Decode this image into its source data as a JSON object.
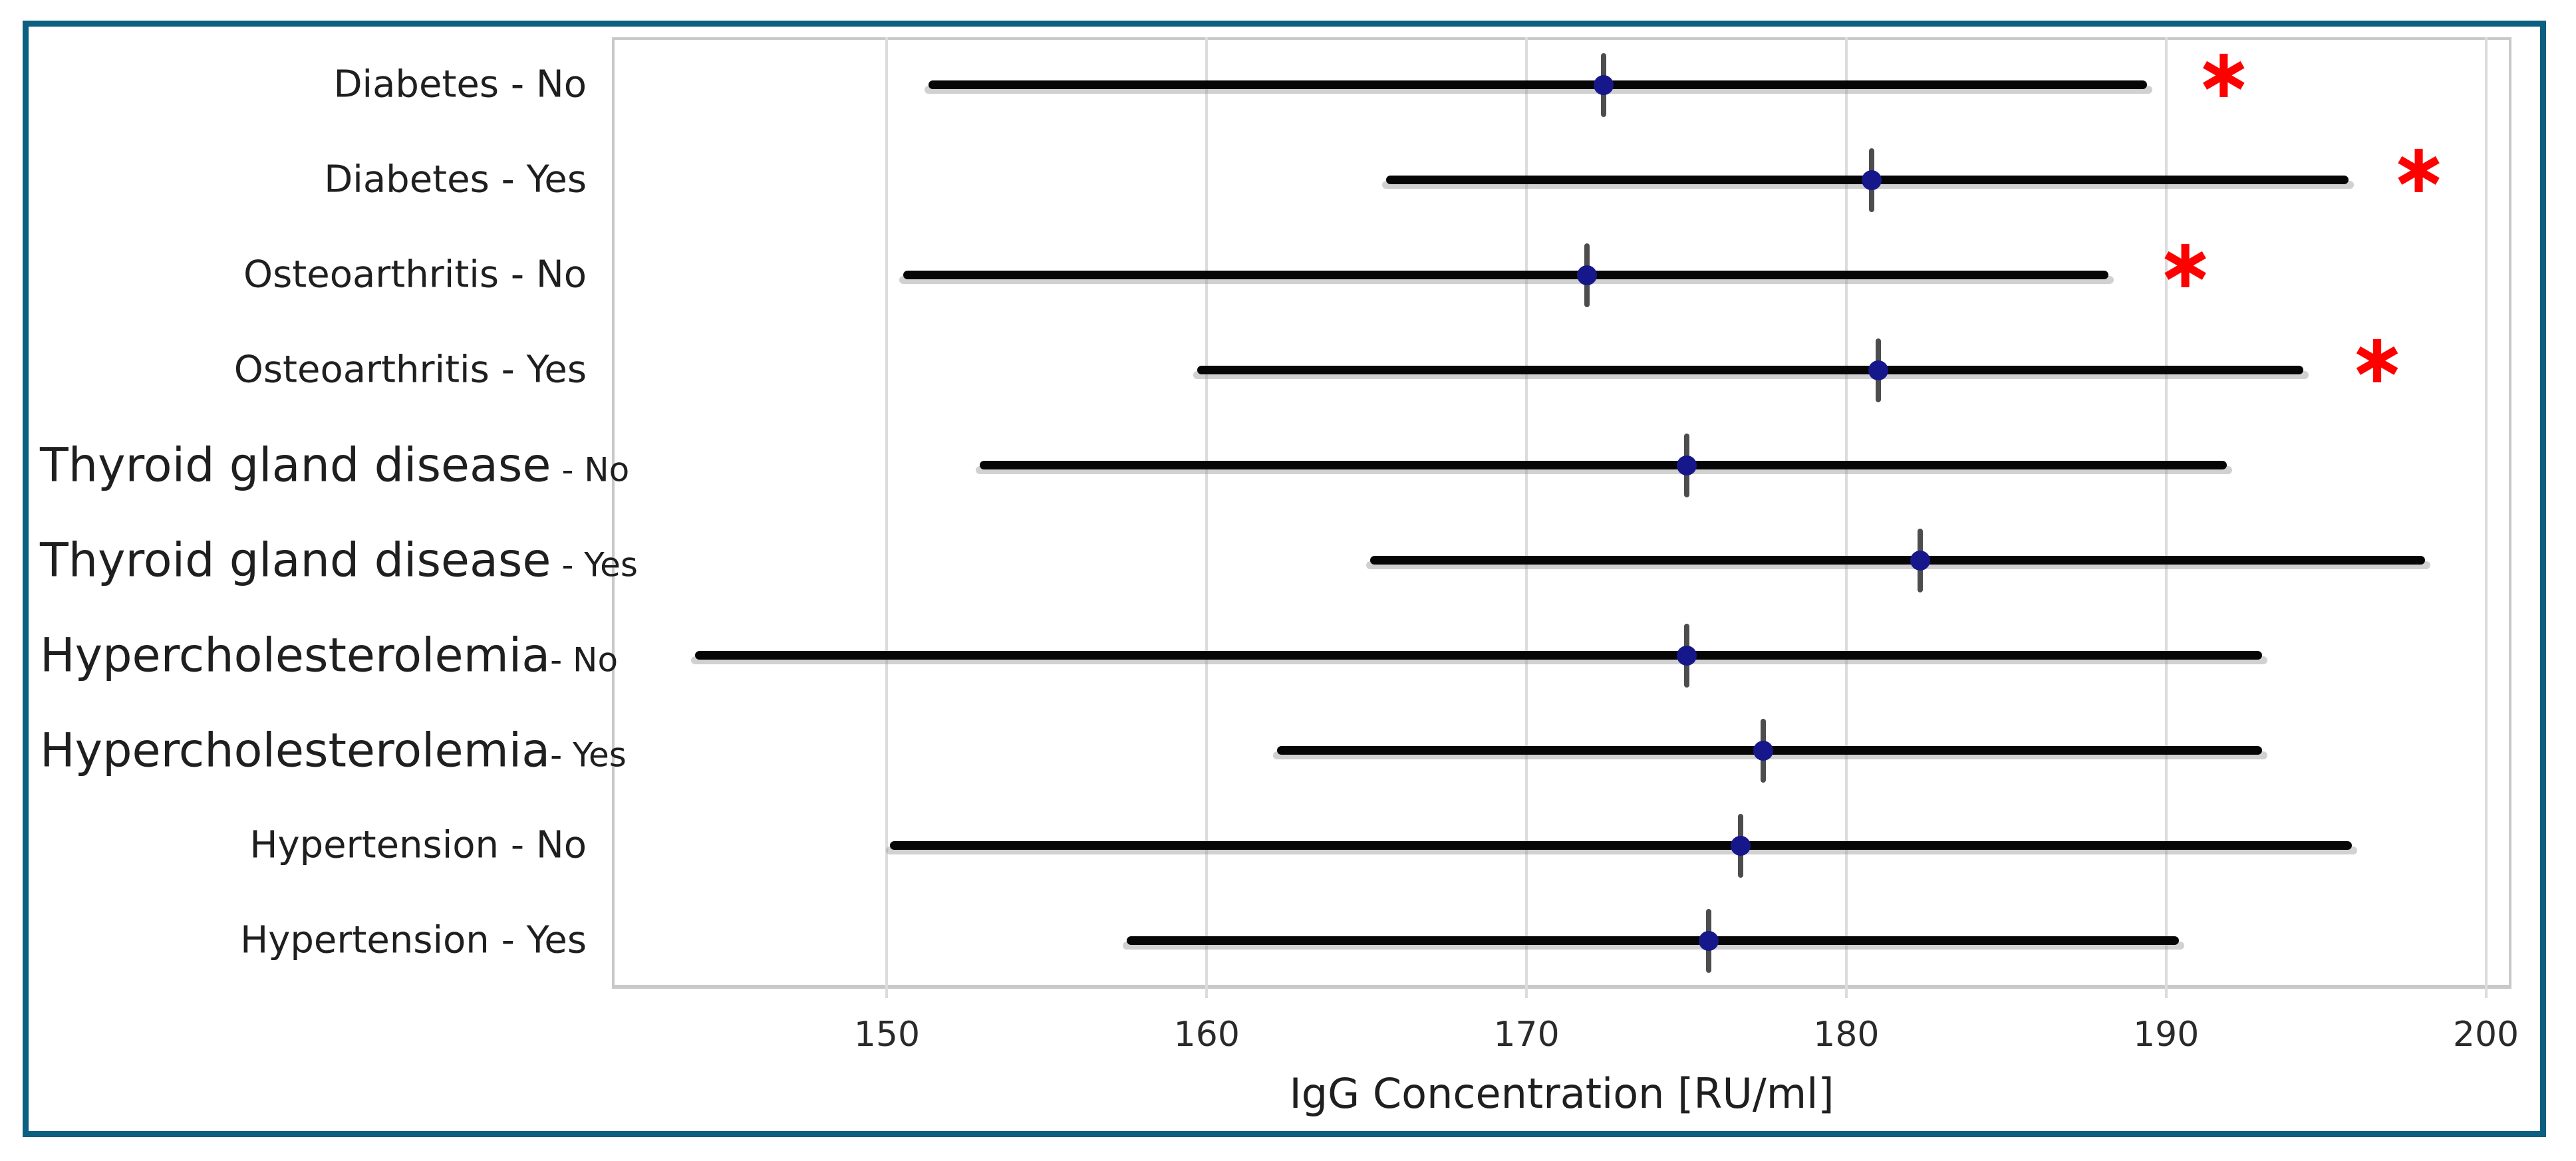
{
  "figure": {
    "border_color": "#0B5F80",
    "background": "#FFFFFF"
  },
  "chart_data": {
    "type": "scatter",
    "subtype": "horizontal-errorbar-forest-plot",
    "title": "",
    "xlabel": "IgG Concentration [RU/ml]",
    "ylabel": "",
    "xlim": [
      141.4,
      200.8
    ],
    "xticks": [
      150,
      160,
      170,
      180,
      190,
      200
    ],
    "grid": "vertical-only",
    "legend": "none",
    "rows": [
      {
        "group": "Diabetes",
        "level": "No",
        "sep": " ",
        "label_large": false,
        "mean": 172.4,
        "ci_low": 151.3,
        "ci_high": 189.4,
        "significant": true,
        "star_x": 191.8
      },
      {
        "group": "Diabetes",
        "level": "Yes",
        "sep": " ",
        "label_large": false,
        "mean": 180.8,
        "ci_low": 165.6,
        "ci_high": 195.7,
        "significant": true,
        "star_x": 197.9
      },
      {
        "group": "Osteoarthritis",
        "level": "No",
        "sep": " ",
        "label_large": false,
        "mean": 171.9,
        "ci_low": 150.5,
        "ci_high": 188.2,
        "significant": true,
        "star_x": 190.6
      },
      {
        "group": "Osteoarthritis",
        "level": "Yes",
        "sep": " ",
        "label_large": false,
        "mean": 181.0,
        "ci_low": 159.7,
        "ci_high": 194.3,
        "significant": true,
        "star_x": 196.6
      },
      {
        "group": "Thyroid gland disease",
        "level": "No",
        "sep": " ",
        "label_large": true,
        "mean": 175.0,
        "ci_low": 152.9,
        "ci_high": 191.9,
        "significant": false,
        "star_x": null
      },
      {
        "group": "Thyroid gland disease",
        "level": "Yes",
        "sep": " ",
        "label_large": true,
        "mean": 182.3,
        "ci_low": 165.1,
        "ci_high": 198.1,
        "significant": false,
        "star_x": null
      },
      {
        "group": "Hypercholesterolemia",
        "level": "No",
        "sep": "",
        "label_large": true,
        "mean": 175.0,
        "ci_low": 144.0,
        "ci_high": 193.0,
        "significant": false,
        "star_x": null
      },
      {
        "group": "Hypercholesterolemia",
        "level": "Yes",
        "sep": "",
        "label_large": true,
        "mean": 177.4,
        "ci_low": 162.2,
        "ci_high": 193.0,
        "significant": false,
        "star_x": null
      },
      {
        "group": "Hypertension",
        "level": "No",
        "sep": " ",
        "label_large": false,
        "mean": 176.7,
        "ci_low": 150.1,
        "ci_high": 195.8,
        "significant": false,
        "star_x": null
      },
      {
        "group": "Hypertension",
        "level": "Yes",
        "sep": " ",
        "label_large": false,
        "mean": 175.7,
        "ci_low": 157.5,
        "ci_high": 190.4,
        "significant": false,
        "star_x": null
      }
    ],
    "colors": {
      "mean_marker": "#17178C",
      "ci_bar": "#060606",
      "ci_shadow": "#9A9A9A",
      "marker_stem": "#4D4D4D",
      "star": "#FF0000",
      "grid": "#DCDCDC",
      "spine": "#C9C9C9",
      "text": "#1F1F1F",
      "tick_text": "#2A2A2A"
    }
  }
}
